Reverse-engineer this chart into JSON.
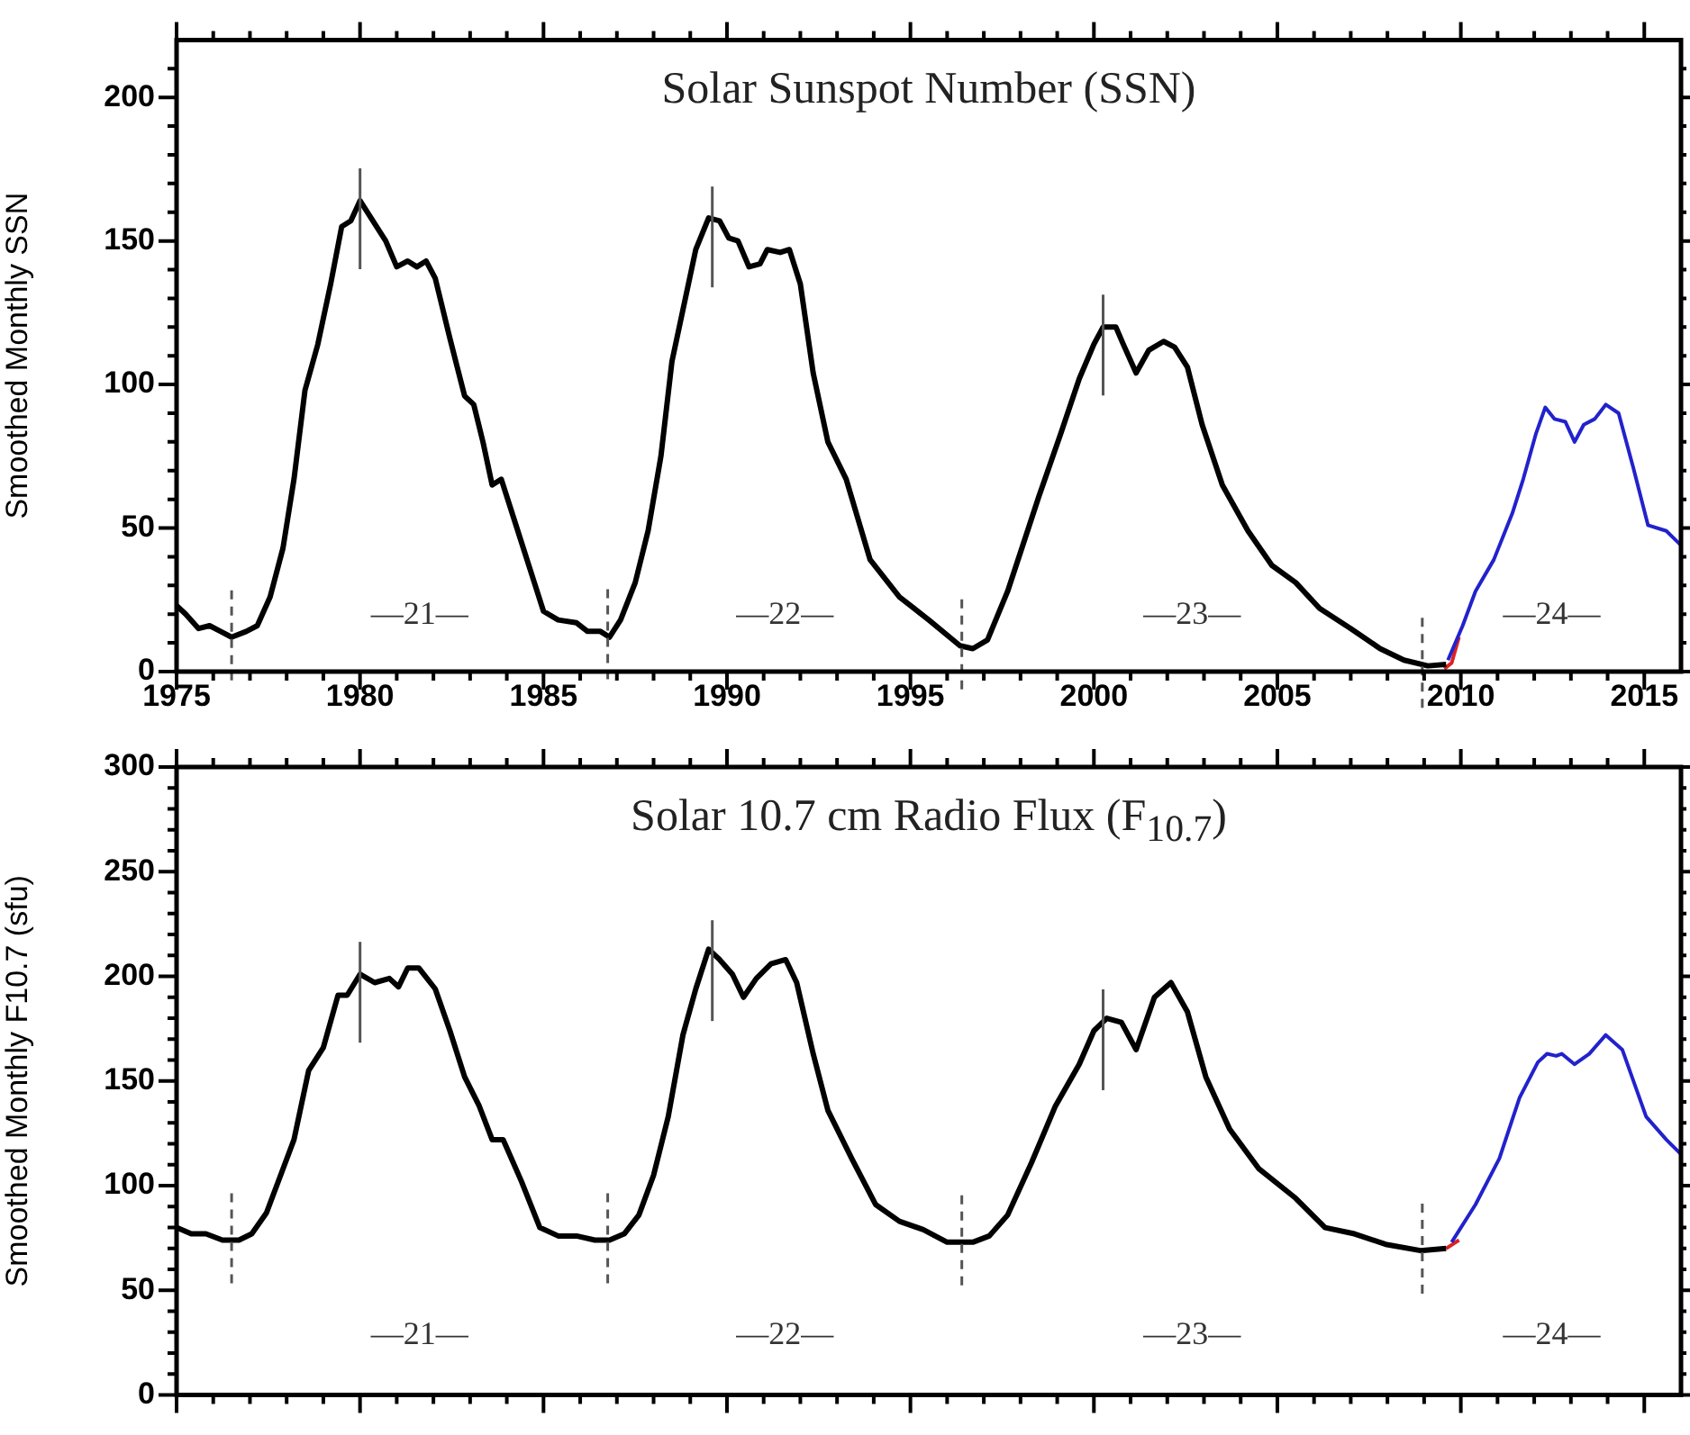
{
  "chart_data": [
    {
      "type": "line",
      "title": "Solar Sunspot Number (SSN)",
      "ylabel": "Smoothed Monthly SSN",
      "xlim": [
        1975,
        2016
      ],
      "xticks": [
        1975,
        {
          "value": 1976,
          "label": null
        },
        {
          "value": 1977,
          "label": null
        },
        {
          "value": 1978,
          "label": null
        },
        {
          "value": 1979,
          "label": null
        },
        1980,
        {
          "value": 1981,
          "label": null
        },
        {
          "value": 1982,
          "label": null
        },
        {
          "value": 1983,
          "label": null
        },
        {
          "value": 1984,
          "label": null
        },
        1985,
        {
          "value": 1986,
          "label": null
        },
        {
          "value": 1987,
          "label": null
        },
        {
          "value": 1988,
          "label": null
        },
        {
          "value": 1989,
          "label": null
        },
        1990,
        {
          "value": 1991,
          "label": null
        },
        {
          "value": 1992,
          "label": null
        },
        {
          "value": 1993,
          "label": null
        },
        {
          "value": 1994,
          "label": null
        },
        1995,
        {
          "value": 1996,
          "label": null
        },
        {
          "value": 1997,
          "label": null
        },
        {
          "value": 1998,
          "label": null
        },
        {
          "value": 1999,
          "label": null
        },
        2000,
        {
          "value": 2001,
          "label": null
        },
        {
          "value": 2002,
          "label": null
        },
        {
          "value": 2003,
          "label": null
        },
        {
          "value": 2004,
          "label": null
        },
        2005,
        {
          "value": 2006,
          "label": null
        },
        {
          "value": 2007,
          "label": null
        },
        {
          "value": 2008,
          "label": null
        },
        {
          "value": 2009,
          "label": null
        },
        2010,
        {
          "value": 2011,
          "label": null
        },
        {
          "value": 2012,
          "label": null
        },
        {
          "value": 2013,
          "label": null
        },
        {
          "value": 2014,
          "label": null
        },
        2015
      ],
      "ylim": [
        0,
        220
      ],
      "yticks": [
        0,
        {
          "value": 10,
          "label": null
        },
        {
          "value": 20,
          "label": null
        },
        {
          "value": 30,
          "label": null
        },
        {
          "value": 40,
          "label": null
        },
        50,
        {
          "value": 60,
          "label": null
        },
        {
          "value": 70,
          "label": null
        },
        {
          "value": 80,
          "label": null
        },
        {
          "value": 90,
          "label": null
        },
        100,
        {
          "value": 110,
          "label": null
        },
        {
          "value": 120,
          "label": null
        },
        {
          "value": 130,
          "label": null
        },
        {
          "value": 140,
          "label": null
        },
        150,
        {
          "value": 160,
          "label": null
        },
        {
          "value": 170,
          "label": null
        },
        {
          "value": 180,
          "label": null
        },
        {
          "value": 190,
          "label": null
        },
        200,
        {
          "value": 210,
          "label": null
        }
      ],
      "series": [
        {
          "color": "#000000",
          "x": [
            1975.0,
            1975.25,
            1975.6,
            1975.9,
            1976.2,
            1976.5,
            1976.9,
            1977.2,
            1977.55,
            1977.9,
            1978.2,
            1978.5,
            1978.85,
            1979.2,
            1979.5,
            1979.75,
            1980.0,
            1980.3,
            1980.7,
            1981.0,
            1981.3,
            1981.55,
            1981.8,
            1982.05,
            1982.45,
            1982.85,
            1983.1,
            1983.35,
            1983.6,
            1983.85,
            1984.1,
            1984.4,
            1984.75,
            1985.0,
            1985.4,
            1985.9,
            1986.2,
            1986.55,
            1986.8,
            1987.1,
            1987.5,
            1987.85,
            1988.2,
            1988.5,
            1988.8,
            1989.15,
            1989.5,
            1989.8,
            1990.05,
            1990.3,
            1990.6,
            1990.9,
            1991.1,
            1991.45,
            1991.7,
            1992.0,
            1992.35,
            1992.75,
            1993.25,
            1993.9,
            1994.7,
            1995.5,
            1996.35,
            1996.7,
            1997.1,
            1997.65,
            1998.5,
            1999.1,
            1999.6,
            2000.0,
            2000.25,
            2000.6,
            2000.8,
            2001.15,
            2001.5,
            2001.9,
            2002.2,
            2002.55,
            2002.95,
            2003.5,
            2004.2,
            2004.85,
            2005.5,
            2006.15,
            2007.0,
            2007.8,
            2008.45,
            2009.1,
            2009.6
          ],
          "values": [
            23,
            20,
            15,
            16,
            14,
            12,
            14,
            16,
            26,
            43,
            67,
            98,
            114,
            135,
            155,
            157,
            164,
            158,
            150,
            141,
            143,
            141,
            143,
            137,
            116,
            96,
            93,
            80,
            65,
            67,
            57,
            45,
            31,
            21,
            18,
            17,
            14,
            14,
            12,
            18,
            31,
            49,
            75,
            108,
            126,
            147,
            158,
            157,
            151,
            150,
            141,
            142,
            147,
            146,
            147,
            135,
            104,
            80,
            67,
            39,
            26,
            18,
            9,
            8,
            11,
            28,
            61,
            83,
            102,
            114,
            120,
            120,
            114,
            104,
            112,
            115,
            113,
            106,
            86,
            65,
            49,
            37,
            31,
            22,
            15,
            8,
            4,
            2,
            2.5
          ]
        },
        {
          "color": "#2222cc",
          "x": [
            2009.65,
            2010.05,
            2010.4,
            2010.9,
            2011.4,
            2011.7,
            2012.05,
            2012.3,
            2012.55,
            2012.85,
            2013.1,
            2013.35,
            2013.65,
            2013.95,
            2014.3,
            2014.7,
            2015.1,
            2015.6,
            2016.0
          ],
          "values": [
            4,
            16,
            28,
            39,
            55,
            67,
            83,
            92,
            88,
            87,
            80,
            86,
            88,
            93,
            90,
            71,
            51,
            49,
            44
          ]
        },
        {
          "color": "#dd2222",
          "x": [
            2009.55,
            2009.75,
            2009.95
          ],
          "values": [
            1,
            3,
            12
          ]
        }
      ],
      "ref_lines": [
        {
          "axis": "x",
          "value": 1980.0,
          "line_style": "solid",
          "color": "#555555"
        },
        {
          "axis": "x",
          "value": 1989.6,
          "line_style": "solid",
          "color": "#555555"
        },
        {
          "axis": "x",
          "value": 2000.25,
          "line_style": "solid",
          "color": "#555555"
        },
        {
          "axis": "x",
          "value": 1976.5,
          "line_style": "dashed",
          "color": "#555555"
        },
        {
          "axis": "x",
          "value": 1986.75,
          "line_style": "dashed",
          "color": "#555555"
        },
        {
          "axis": "x",
          "value": 1996.4,
          "line_style": "dashed",
          "color": "#555555"
        },
        {
          "axis": "x",
          "value": 2008.95,
          "line_style": "dashed",
          "color": "#555555"
        }
      ],
      "annotations": [
        "—21—",
        "—22—",
        "—23—",
        "—24—"
      ]
    },
    {
      "type": "line",
      "title": "Solar 10.7 cm Radio Flux (F$_{10.7}$)",
      "ylabel": "Smoothed Monthly F10.7 (sfu)",
      "tick_labels": "y",
      "xlim": [
        1975,
        2016
      ],
      "xticks": [
        1975,
        {
          "value": 1976,
          "label": null
        },
        {
          "value": 1977,
          "label": null
        },
        {
          "value": 1978,
          "label": null
        },
        {
          "value": 1979,
          "label": null
        },
        1980,
        {
          "value": 1981,
          "label": null
        },
        {
          "value": 1982,
          "label": null
        },
        {
          "value": 1983,
          "label": null
        },
        {
          "value": 1984,
          "label": null
        },
        1985,
        {
          "value": 1986,
          "label": null
        },
        {
          "value": 1987,
          "label": null
        },
        {
          "value": 1988,
          "label": null
        },
        {
          "value": 1989,
          "label": null
        },
        1990,
        {
          "value": 1991,
          "label": null
        },
        {
          "value": 1992,
          "label": null
        },
        {
          "value": 1993,
          "label": null
        },
        {
          "value": 1994,
          "label": null
        },
        1995,
        {
          "value": 1996,
          "label": null
        },
        {
          "value": 1997,
          "label": null
        },
        {
          "value": 1998,
          "label": null
        },
        {
          "value": 1999,
          "label": null
        },
        2000,
        {
          "value": 2001,
          "label": null
        },
        {
          "value": 2002,
          "label": null
        },
        {
          "value": 2003,
          "label": null
        },
        {
          "value": 2004,
          "label": null
        },
        2005,
        {
          "value": 2006,
          "label": null
        },
        {
          "value": 2007,
          "label": null
        },
        {
          "value": 2008,
          "label": null
        },
        {
          "value": 2009,
          "label": null
        },
        2010,
        {
          "value": 2011,
          "label": null
        },
        {
          "value": 2012,
          "label": null
        },
        {
          "value": 2013,
          "label": null
        },
        {
          "value": 2014,
          "label": null
        },
        2015
      ],
      "ylim": [
        0,
        300
      ],
      "yticks": [
        0,
        {
          "value": 10,
          "label": null
        },
        {
          "value": 20,
          "label": null
        },
        {
          "value": 30,
          "label": null
        },
        {
          "value": 40,
          "label": null
        },
        50,
        {
          "value": 60,
          "label": null
        },
        {
          "value": 70,
          "label": null
        },
        {
          "value": 80,
          "label": null
        },
        {
          "value": 90,
          "label": null
        },
        100,
        {
          "value": 110,
          "label": null
        },
        {
          "value": 120,
          "label": null
        },
        {
          "value": 130,
          "label": null
        },
        {
          "value": 140,
          "label": null
        },
        150,
        {
          "value": 160,
          "label": null
        },
        {
          "value": 170,
          "label": null
        },
        {
          "value": 180,
          "label": null
        },
        {
          "value": 190,
          "label": null
        },
        200,
        {
          "value": 210,
          "label": null
        },
        {
          "value": 220,
          "label": null
        },
        {
          "value": 230,
          "label": null
        },
        {
          "value": 240,
          "label": null
        },
        250,
        {
          "value": 260,
          "label": null
        },
        {
          "value": 270,
          "label": null
        },
        {
          "value": 280,
          "label": null
        },
        {
          "value": 290,
          "label": null
        },
        300
      ],
      "series": [
        {
          "color": "#000000",
          "x": [
            1975.0,
            1975.4,
            1975.8,
            1976.25,
            1976.7,
            1977.05,
            1977.45,
            1977.9,
            1978.2,
            1978.6,
            1979.0,
            1979.4,
            1979.65,
            1980.0,
            1980.4,
            1980.8,
            1981.05,
            1981.3,
            1981.6,
            1982.05,
            1982.45,
            1982.85,
            1983.25,
            1983.6,
            1983.9,
            1984.4,
            1984.9,
            1985.4,
            1985.9,
            1986.4,
            1986.8,
            1987.2,
            1987.6,
            1988.0,
            1988.4,
            1988.8,
            1989.15,
            1989.5,
            1989.8,
            1990.15,
            1990.45,
            1990.8,
            1991.2,
            1991.6,
            1991.9,
            1992.35,
            1992.75,
            1993.4,
            1994.05,
            1994.7,
            1995.35,
            1996.0,
            1996.7,
            1997.15,
            1997.65,
            1998.3,
            1998.95,
            1999.6,
            2000.0,
            2000.35,
            2000.75,
            2001.15,
            2001.65,
            2002.1,
            2002.55,
            2003.05,
            2003.7,
            2004.5,
            2005.5,
            2006.3,
            2007.1,
            2007.95,
            2008.9,
            2009.6
          ],
          "values": [
            80,
            77,
            77,
            74,
            74,
            77,
            87,
            108,
            122,
            155,
            166,
            191,
            191,
            201,
            197,
            199,
            195,
            204,
            204,
            194,
            174,
            152,
            138,
            122,
            122,
            102,
            80,
            76,
            76,
            74,
            74,
            77,
            86,
            105,
            133,
            172,
            194,
            213,
            208,
            201,
            190,
            199,
            206,
            208,
            197,
            163,
            136,
            113,
            91,
            83,
            79,
            73,
            73,
            76,
            86,
            111,
            138,
            158,
            174,
            180,
            178,
            165,
            190,
            197,
            183,
            152,
            127,
            108,
            94,
            80,
            77,
            72,
            69,
            70
          ]
        },
        {
          "color": "#2222cc",
          "x": [
            2009.75,
            2010.4,
            2011.05,
            2011.6,
            2012.1,
            2012.35,
            2012.6,
            2012.75,
            2013.1,
            2013.5,
            2013.95,
            2014.4,
            2015.05,
            2015.6,
            2016.0
          ],
          "values": [
            73,
            91,
            113,
            142,
            159,
            163,
            162,
            163,
            158,
            163,
            172,
            165,
            133,
            122,
            115
          ]
        },
        {
          "color": "#dd2222",
          "x": [
            2009.6,
            2009.95
          ],
          "values": [
            70,
            74
          ]
        }
      ],
      "ref_lines": [
        {
          "axis": "x",
          "value": 1980.0,
          "line_style": "solid",
          "color": "#555555"
        },
        {
          "axis": "x",
          "value": 1989.6,
          "line_style": "solid",
          "color": "#555555"
        },
        {
          "axis": "x",
          "value": 2000.25,
          "line_style": "solid",
          "color": "#555555"
        },
        {
          "axis": "x",
          "value": 1976.5,
          "line_style": "dashed",
          "color": "#555555"
        },
        {
          "axis": "x",
          "value": 1986.75,
          "line_style": "dashed",
          "color": "#555555"
        },
        {
          "axis": "x",
          "value": 1996.4,
          "line_style": "dashed",
          "color": "#555555"
        },
        {
          "axis": "x",
          "value": 2008.95,
          "line_style": "dashed",
          "color": "#555555"
        }
      ],
      "annotations": [
        "—21—",
        "—22—",
        "—23—",
        "—24—"
      ]
    }
  ]
}
